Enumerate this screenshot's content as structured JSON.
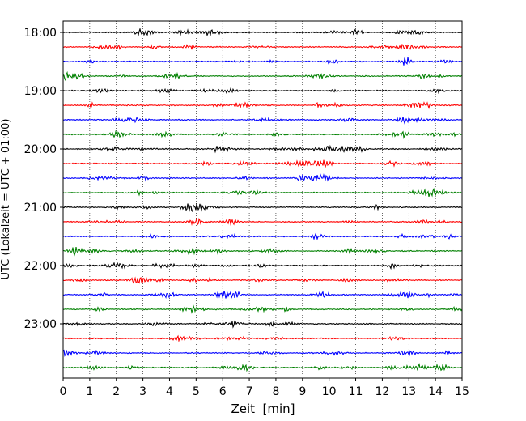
{
  "chart_data": {
    "type": "line",
    "title": "",
    "xlabel": "Zeit  [min]",
    "ylabel": "UTC (Lokalzeit = UTC + 01:00)",
    "x_ticks": [
      "0",
      "1",
      "2",
      "3",
      "4",
      "5",
      "6",
      "7",
      "8",
      "9",
      "10",
      "11",
      "12",
      "13",
      "14",
      "15"
    ],
    "xlim": [
      0,
      15
    ],
    "y_tick_labels": [
      "18:00",
      "19:00",
      "20:00",
      "21:00",
      "22:00",
      "23:00"
    ],
    "trace_start": "18:00",
    "trace_interval_min": 15,
    "trace_count": 24,
    "trace_colors": [
      "#000000",
      "#ff0000",
      "#0000ff",
      "#008000"
    ],
    "grid": "x-dotted",
    "legend": "none"
  }
}
